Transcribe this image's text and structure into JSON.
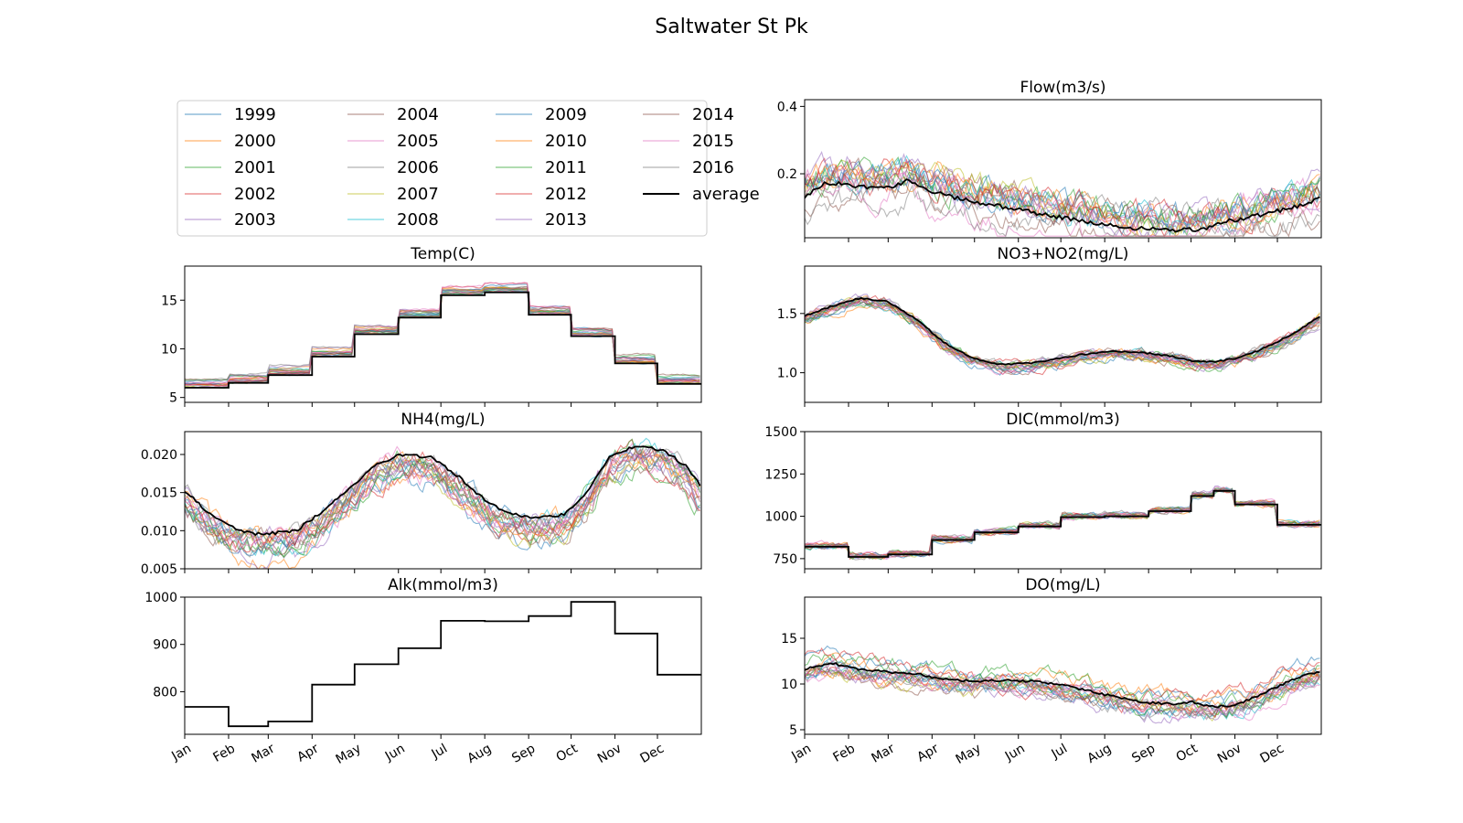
{
  "figure_title": "Saltwater St Pk",
  "years": [
    "1999",
    "2000",
    "2001",
    "2002",
    "2003",
    "2004",
    "2005",
    "2006",
    "2007",
    "2008",
    "2009",
    "2010",
    "2011",
    "2012",
    "2013",
    "2014",
    "2015",
    "2016"
  ],
  "average_label": "average",
  "colors": {
    "series": [
      "#1f77b4",
      "#ff7f0e",
      "#2ca02c",
      "#d62728",
      "#9467bd",
      "#8c564b",
      "#e377c2",
      "#7f7f7f",
      "#bcbd22",
      "#17becf",
      "#1f77b4",
      "#ff7f0e",
      "#2ca02c",
      "#d62728",
      "#9467bd",
      "#8c564b",
      "#e377c2",
      "#7f7f7f"
    ],
    "average": "#000000"
  },
  "chart_data": [
    {
      "type": "line",
      "title": "Temp(C)",
      "x_unit": "day of year",
      "ylim": [
        4.5,
        18.5
      ],
      "yticks": [
        5,
        10,
        15
      ],
      "ytick_labels": [
        "5",
        "10",
        "15"
      ],
      "xticks_months": [
        "Jan",
        "Feb",
        "Mar",
        "Apr",
        "May",
        "Jun",
        "Jul",
        "Aug",
        "Sep",
        "Oct",
        "Nov",
        "Dec"
      ],
      "show_month_labels": true,
      "average": {
        "name": "average",
        "x": [
          1,
          32,
          60,
          91,
          121,
          152,
          182,
          213,
          244,
          274,
          305,
          335,
          366
        ],
        "y": [
          6.0,
          6.5,
          7.3,
          9.2,
          11.5,
          13.2,
          15.5,
          15.8,
          13.5,
          11.3,
          8.5,
          6.4,
          6.2
        ]
      },
      "step": true,
      "series_spread": 1.4,
      "series_noise": 0.1
    },
    {
      "type": "line",
      "title": "NH4(mg/L)",
      "x_unit": "day of year",
      "ylim": [
        0.005,
        0.023
      ],
      "yticks": [
        0.005,
        0.01,
        0.015,
        0.02
      ],
      "ytick_labels": [
        "0.005",
        "0.010",
        "0.015",
        "0.020"
      ],
      "show_month_labels": true,
      "average": {
        "name": "average",
        "x": [
          1,
          20,
          40,
          55,
          80,
          100,
          120,
          135,
          150,
          160,
          175,
          195,
          210,
          225,
          240,
          255,
          270,
          285,
          300,
          315,
          325,
          340,
          355,
          366
        ],
        "y": [
          0.0152,
          0.012,
          0.01,
          0.0095,
          0.01,
          0.0128,
          0.016,
          0.0185,
          0.0198,
          0.02,
          0.0196,
          0.017,
          0.0145,
          0.0128,
          0.0118,
          0.0118,
          0.0122,
          0.015,
          0.0195,
          0.0208,
          0.021,
          0.0205,
          0.0185,
          0.0158
        ]
      },
      "step": false,
      "series_spread": 0.0035,
      "series_noise": 0.0012,
      "clip_max": 0.0228
    },
    {
      "type": "line",
      "title": "Alk(mmol/m3)",
      "x_unit": "day of year",
      "ylim": [
        710,
        1000
      ],
      "yticks": [
        800,
        900,
        1000
      ],
      "ytick_labels": [
        "800",
        "900",
        "1000"
      ],
      "show_month_labels": true,
      "average": {
        "name": "average",
        "x": [
          1,
          32,
          60,
          91,
          121,
          152,
          182,
          213,
          244,
          274,
          305,
          335,
          366
        ],
        "y": [
          768,
          727,
          737,
          815,
          858,
          892,
          950,
          949,
          960,
          990,
          923,
          836,
          836
        ]
      },
      "step": true,
      "series_spread": 0,
      "series_noise": 0
    },
    {
      "type": "line",
      "title": "Flow(m3/s)",
      "x_unit": "day of year",
      "ylim": [
        0.01,
        0.42
      ],
      "yticks": [
        0.2,
        0.4
      ],
      "ytick_labels": [
        "0.2",
        "0.4"
      ],
      "show_month_labels": true,
      "average": {
        "name": "average",
        "x": [
          1,
          15,
          30,
          45,
          60,
          75,
          90,
          110,
          130,
          150,
          170,
          190,
          210,
          230,
          250,
          265,
          280,
          290,
          300,
          315,
          330,
          345,
          355,
          366
        ],
        "y": [
          0.13,
          0.17,
          0.17,
          0.16,
          0.16,
          0.18,
          0.15,
          0.125,
          0.11,
          0.095,
          0.08,
          0.065,
          0.05,
          0.04,
          0.035,
          0.032,
          0.035,
          0.045,
          0.06,
          0.07,
          0.085,
          0.1,
          0.11,
          0.13
        ]
      },
      "step": false,
      "series_spread": 0.06,
      "series_noise": 0.035,
      "clip_max": 0.4,
      "clip_min": 0.015
    },
    {
      "type": "line",
      "title": "NO3+NO2(mg/L)",
      "x_unit": "day of year",
      "ylim": [
        0.75,
        1.9
      ],
      "yticks": [
        1.0,
        1.5
      ],
      "ytick_labels": [
        "1.0",
        "1.5"
      ],
      "show_month_labels": true,
      "average": {
        "name": "average",
        "x": [
          1,
          20,
          40,
          60,
          80,
          100,
          120,
          140,
          160,
          180,
          200,
          220,
          240,
          260,
          275,
          290,
          305,
          320,
          335,
          350,
          366
        ],
        "y": [
          1.48,
          1.56,
          1.63,
          1.6,
          1.45,
          1.25,
          1.12,
          1.07,
          1.08,
          1.12,
          1.16,
          1.18,
          1.17,
          1.14,
          1.1,
          1.09,
          1.12,
          1.18,
          1.26,
          1.36,
          1.48
        ]
      },
      "step": false,
      "series_spread": 0.1,
      "series_noise": 0.035
    },
    {
      "type": "line",
      "title": "DIC(mmol/m3)",
      "x_unit": "day of year",
      "ylim": [
        690,
        1500
      ],
      "yticks": [
        750,
        1000,
        1250,
        1500
      ],
      "ytick_labels": [
        "750",
        "1000",
        "1250",
        "1500"
      ],
      "show_month_labels": true,
      "average": {
        "name": "average",
        "x": [
          1,
          32,
          60,
          91,
          121,
          152,
          182,
          213,
          244,
          274,
          290,
          305,
          335,
          366
        ],
        "y": [
          820,
          760,
          775,
          860,
          905,
          940,
          995,
          1000,
          1030,
          1120,
          1150,
          1070,
          950,
          905
        ]
      },
      "step": true,
      "series_spread": 25,
      "series_noise": 15
    },
    {
      "type": "line",
      "title": "DO(mg/L)",
      "x_unit": "day of year",
      "ylim": [
        4.5,
        19.5
      ],
      "yticks": [
        5,
        10,
        15
      ],
      "ytick_labels": [
        "5",
        "10",
        "15"
      ],
      "show_month_labels": true,
      "average": {
        "name": "average",
        "x": [
          1,
          20,
          40,
          60,
          80,
          100,
          120,
          140,
          160,
          180,
          200,
          220,
          240,
          260,
          275,
          290,
          305,
          320,
          335,
          350,
          366
        ],
        "y": [
          11.6,
          12.3,
          11.6,
          11.3,
          11.1,
          10.5,
          10.3,
          10.4,
          10.3,
          10.0,
          9.3,
          8.6,
          8.0,
          7.8,
          8.0,
          7.5,
          7.7,
          8.6,
          9.7,
          10.8,
          11.4
        ]
      },
      "step": false,
      "series_spread": 1.3,
      "series_noise": 0.7
    }
  ],
  "months": [
    "Jan",
    "Feb",
    "Mar",
    "Apr",
    "May",
    "Jun",
    "Jul",
    "Aug",
    "Sep",
    "Oct",
    "Nov",
    "Dec"
  ],
  "month_starts": [
    1,
    32,
    60,
    91,
    121,
    152,
    182,
    213,
    244,
    274,
    305,
    335
  ]
}
